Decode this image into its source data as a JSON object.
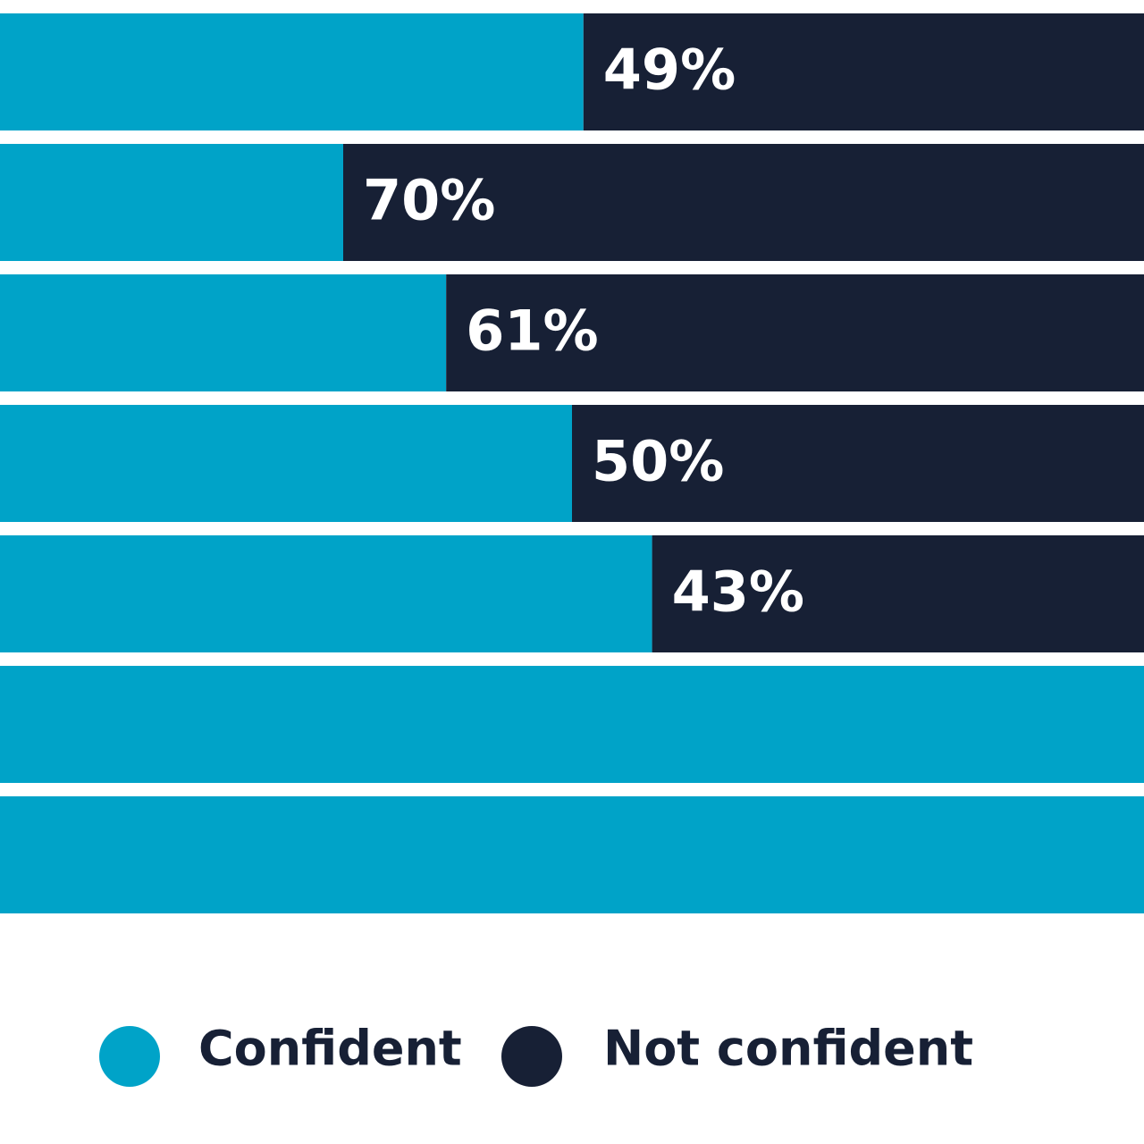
{
  "chart_data": {
    "type": "stacked_bar_horizontal",
    "categories": [
      null,
      null,
      null,
      null,
      null,
      null,
      null
    ],
    "xlim": [
      0,
      100
    ],
    "series": [
      {
        "name": "Confident",
        "color": "#00a3c8",
        "values": [
          51,
          30,
          39,
          50,
          57,
          100,
          100
        ]
      },
      {
        "name": "Not confident",
        "color": "#172035",
        "values": [
          49,
          70,
          61,
          50,
          43,
          0,
          0
        ],
        "value_labels": [
          "49%",
          "70%",
          "61%",
          "50%",
          "43%",
          null,
          null
        ]
      }
    ]
  }
}
